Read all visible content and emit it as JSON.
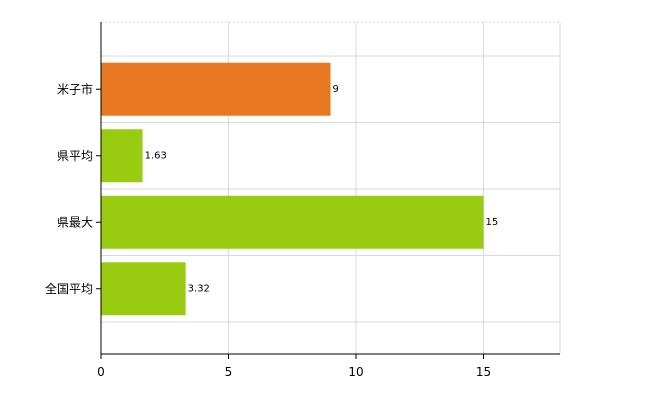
{
  "chart_data": {
    "type": "bar",
    "orientation": "horizontal",
    "categories": [
      "米子市",
      "県平均",
      "県最大",
      "全国平均"
    ],
    "values": [
      9,
      1.63,
      15,
      3.32
    ],
    "value_labels": [
      "9",
      "1.63",
      "15",
      "3.32"
    ],
    "bar_colors": [
      "#e87722",
      "#99cc11",
      "#99cc11",
      "#99cc11"
    ],
    "xlim": [
      0,
      18
    ],
    "xticks": [
      0,
      5,
      10,
      15
    ],
    "xtick_labels": [
      "0",
      "5",
      "10",
      "15"
    ],
    "grid": true,
    "legend": "none"
  }
}
